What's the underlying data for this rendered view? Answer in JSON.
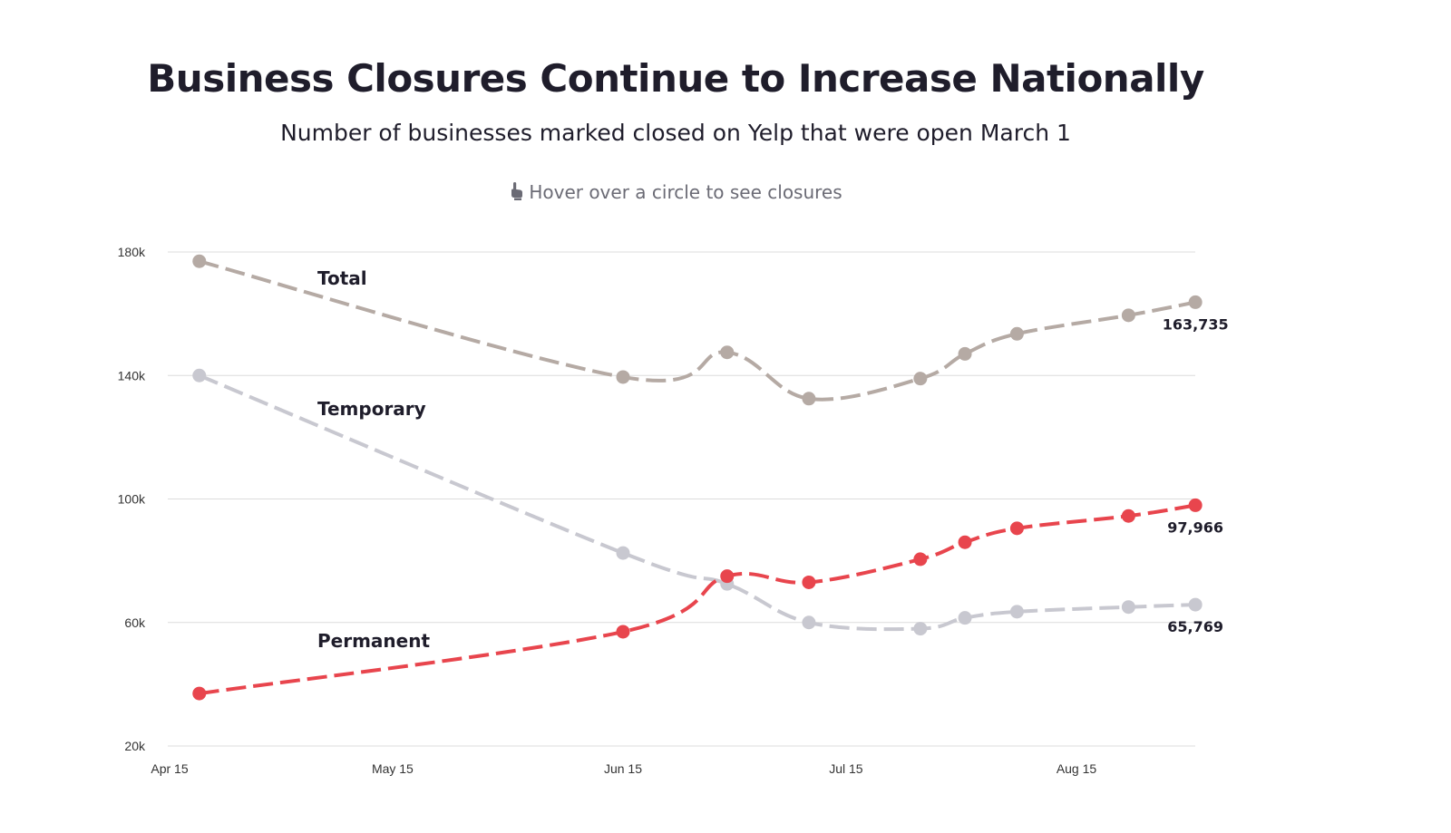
{
  "title": "Business Closures Continue to Increase Nationally",
  "subtitle": "Number of businesses marked closed on Yelp that were open March 1",
  "hint": "Hover over a circle to see closures",
  "hint_icon": "pointing-hand-icon",
  "chart_data": {
    "type": "line",
    "x_ticks": [
      "Apr 15",
      "May 15",
      "Jun 15",
      "Jul 15",
      "Aug 15"
    ],
    "y_ticks": [
      "180k",
      "140k",
      "100k",
      "60k",
      "20k"
    ],
    "ylim": [
      20000,
      180000
    ],
    "x": [
      "2020-04-19",
      "2020-06-15",
      "2020-06-29",
      "2020-07-10",
      "2020-07-25",
      "2020-07-31",
      "2020-08-07",
      "2020-08-22",
      "2020-08-31"
    ],
    "grid": true,
    "series": [
      {
        "name": "Total",
        "color": "#b5aaa4",
        "values": [
          177000,
          139500,
          147500,
          132500,
          139000,
          147000,
          153500,
          159500,
          163735
        ],
        "end_label": "163,735"
      },
      {
        "name": "Temporary",
        "color": "#c8c8d0",
        "values": [
          140000,
          82500,
          72500,
          60000,
          58000,
          61500,
          63500,
          65000,
          65769
        ],
        "end_label": "65,769"
      },
      {
        "name": "Permanent",
        "color": "#e8454d",
        "values": [
          37000,
          57000,
          75000,
          73000,
          80500,
          86000,
          90500,
          94500,
          97966
        ],
        "end_label": "97,966"
      }
    ]
  }
}
